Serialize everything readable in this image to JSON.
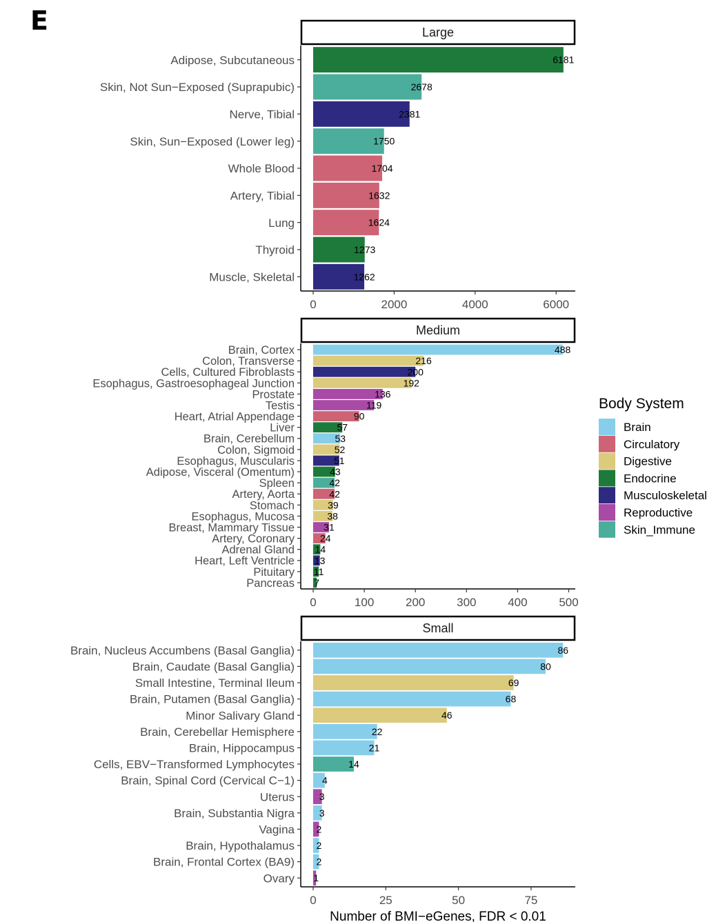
{
  "panel_letter": "E",
  "colors": {
    "Brain": "#87CEEB",
    "Circulatory": "#CD6374",
    "Digestive": "#DCCA7D",
    "Endocrine": "#1E7A3A",
    "Musculoskeletal": "#2E2A82",
    "Reproductive": "#A94AA6",
    "Skin_Immune": "#4BAE9C"
  },
  "chart_data": [
    {
      "type": "bar",
      "orientation": "horizontal",
      "title": "Large",
      "xlim": [
        0,
        6400
      ],
      "xticks": [
        0,
        2000,
        4000,
        6000
      ],
      "categories": [
        "Adipose, Subcutaneous",
        "Skin, Not Sun−Exposed (Suprapubic)",
        "Nerve, Tibial",
        "Skin, Sun−Exposed (Lower leg)",
        "Whole Blood",
        "Artery, Tibial",
        "Lung",
        "Thyroid",
        "Muscle, Skeletal"
      ],
      "values": [
        6181,
        2678,
        2381,
        1750,
        1704,
        1632,
        1624,
        1273,
        1262
      ],
      "systems": [
        "Endocrine",
        "Skin_Immune",
        "Musculoskeletal",
        "Skin_Immune",
        "Circulatory",
        "Circulatory",
        "Circulatory",
        "Endocrine",
        "Musculoskeletal"
      ]
    },
    {
      "type": "bar",
      "orientation": "horizontal",
      "title": "Medium",
      "xlim": [
        0,
        510
      ],
      "xticks": [
        0,
        100,
        200,
        300,
        400,
        500
      ],
      "categories": [
        "Brain, Cortex",
        "Colon, Transverse",
        "Cells, Cultured Fibroblasts",
        "Esophagus, Gastroesophageal Junction",
        "Prostate",
        "Testis",
        "Heart, Atrial Appendage",
        "Liver",
        "Brain, Cerebellum",
        "Colon, Sigmoid",
        "Esophagus, Muscularis",
        "Adipose, Visceral (Omentum)",
        "Spleen",
        "Artery, Aorta",
        "Stomach",
        "Esophagus, Mucosa",
        "Breast, Mammary Tissue",
        "Artery, Coronary",
        "Adrenal Gland",
        "Heart, Left Ventricle",
        "Pituitary",
        "Pancreas"
      ],
      "values": [
        488,
        216,
        200,
        192,
        136,
        119,
        90,
        57,
        53,
        52,
        51,
        43,
        42,
        42,
        39,
        38,
        31,
        24,
        14,
        13,
        11,
        7
      ],
      "systems": [
        "Brain",
        "Digestive",
        "Musculoskeletal",
        "Digestive",
        "Reproductive",
        "Reproductive",
        "Circulatory",
        "Endocrine",
        "Brain",
        "Digestive",
        "Musculoskeletal",
        "Endocrine",
        "Skin_Immune",
        "Circulatory",
        "Digestive",
        "Digestive",
        "Reproductive",
        "Circulatory",
        "Endocrine",
        "Musculoskeletal",
        "Endocrine",
        "Endocrine"
      ]
    },
    {
      "type": "bar",
      "orientation": "horizontal",
      "title": "Small",
      "xlabel": "Number of BMI−eGenes, FDR < 0.01",
      "xlim": [
        0,
        90
      ],
      "xticks": [
        0,
        25,
        50,
        75
      ],
      "categories": [
        "Brain, Nucleus Accumbens (Basal Ganglia)",
        "Brain, Caudate (Basal Ganglia)",
        "Small Intestine, Terminal Ileum",
        "Brain, Putamen (Basal Ganglia)",
        "Minor Salivary Gland",
        "Brain, Cerebellar Hemisphere",
        "Brain, Hippocampus",
        "Cells, EBV−Transformed Lymphocytes",
        "Brain, Spinal Cord (Cervical C−1)",
        "Uterus",
        "Brain, Substantia Nigra",
        "Vagina",
        "Brain, Hypothalamus",
        "Brain, Frontal Cortex (BA9)",
        "Ovary"
      ],
      "values": [
        86,
        80,
        69,
        68,
        46,
        22,
        21,
        14,
        4,
        3,
        3,
        2,
        2,
        2,
        1
      ],
      "systems": [
        "Brain",
        "Brain",
        "Digestive",
        "Brain",
        "Digestive",
        "Brain",
        "Brain",
        "Skin_Immune",
        "Brain",
        "Reproductive",
        "Brain",
        "Reproductive",
        "Brain",
        "Brain",
        "Reproductive"
      ]
    }
  ],
  "legend": {
    "title": "Body System",
    "position": "right",
    "items": [
      "Brain",
      "Circulatory",
      "Digestive",
      "Endocrine",
      "Musculoskeletal",
      "Reproductive",
      "Skin_Immune"
    ]
  }
}
